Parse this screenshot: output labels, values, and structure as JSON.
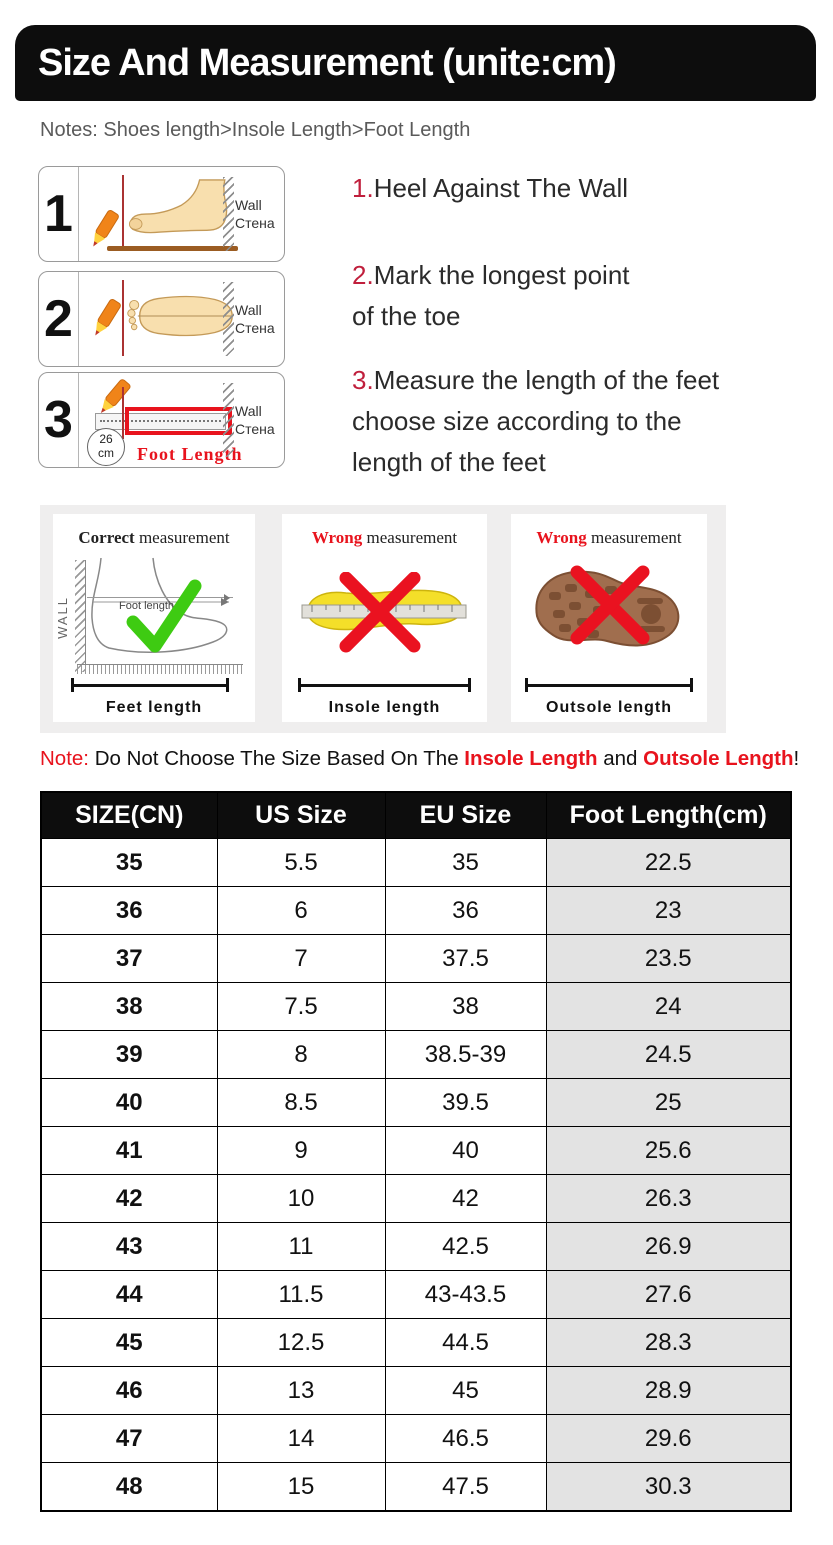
{
  "header": {
    "title": "Size And Measurement (unite:cm)"
  },
  "notes_line": "Notes: Shoes length>Insole Length>Foot Length",
  "steps": [
    {
      "num": "1",
      "wall_en": "Wall",
      "wall_ru": "Стена"
    },
    {
      "num": "2",
      "wall_en": "Wall",
      "wall_ru": "Стена"
    },
    {
      "num": "3",
      "wall_en": "Wall",
      "wall_ru": "Стена",
      "ruler_value": "26",
      "ruler_unit": "cm",
      "foot_length_label": "Foot Length"
    }
  ],
  "instructions": [
    {
      "num": "1.",
      "text": "Heel Against The Wall"
    },
    {
      "num": "2.",
      "text": "Mark the longest point\nof the toe"
    },
    {
      "num": "3.",
      "text": "Measure the length of the feet\nchoose size according to the\nlength of the feet"
    }
  ],
  "panels": [
    {
      "title_em": "Correct",
      "title_rest": " measurement",
      "wall_text": "WALL",
      "inner_label": "Foot length",
      "label": "Feet length"
    },
    {
      "title_em": "Wrong",
      "title_rest": " measurement",
      "label": "Insole length"
    },
    {
      "title_em": "Wrong",
      "title_rest": " measurement",
      "label": "Outsole length"
    }
  ],
  "note": {
    "prefix": "Note:",
    "body": " Do Not Choose The Size Based On The ",
    "em1": "Insole Length",
    "mid": " and ",
    "em2": "Outsole Length",
    "suffix": "!"
  },
  "size_table": {
    "headers": [
      "SIZE(CN)",
      "US Size",
      "EU Size",
      "Foot Length(cm)"
    ],
    "rows": [
      [
        "35",
        "5.5",
        "35",
        "22.5"
      ],
      [
        "36",
        "6",
        "36",
        "23"
      ],
      [
        "37",
        "7",
        "37.5",
        "23.5"
      ],
      [
        "38",
        "7.5",
        "38",
        "24"
      ],
      [
        "39",
        "8",
        "38.5-39",
        "24.5"
      ],
      [
        "40",
        "8.5",
        "39.5",
        "25"
      ],
      [
        "41",
        "9",
        "40",
        "25.6"
      ],
      [
        "42",
        "10",
        "42",
        "26.3"
      ],
      [
        "43",
        "11",
        "42.5",
        "26.9"
      ],
      [
        "44",
        "11.5",
        "43-43.5",
        "27.6"
      ],
      [
        "45",
        "12.5",
        "44.5",
        "28.3"
      ],
      [
        "46",
        "13",
        "45",
        "28.9"
      ],
      [
        "47",
        "14",
        "46.5",
        "29.6"
      ],
      [
        "48",
        "15",
        "47.5",
        "30.3"
      ]
    ]
  },
  "colors": {
    "accent_red": "#e8131d",
    "number_crimson": "#c01f3c",
    "banner_black": "#0d0d0d",
    "table_shaded_cell": "#e3e3e3",
    "panel_bg": "#efeeee",
    "check_green": "#3ecb12"
  }
}
